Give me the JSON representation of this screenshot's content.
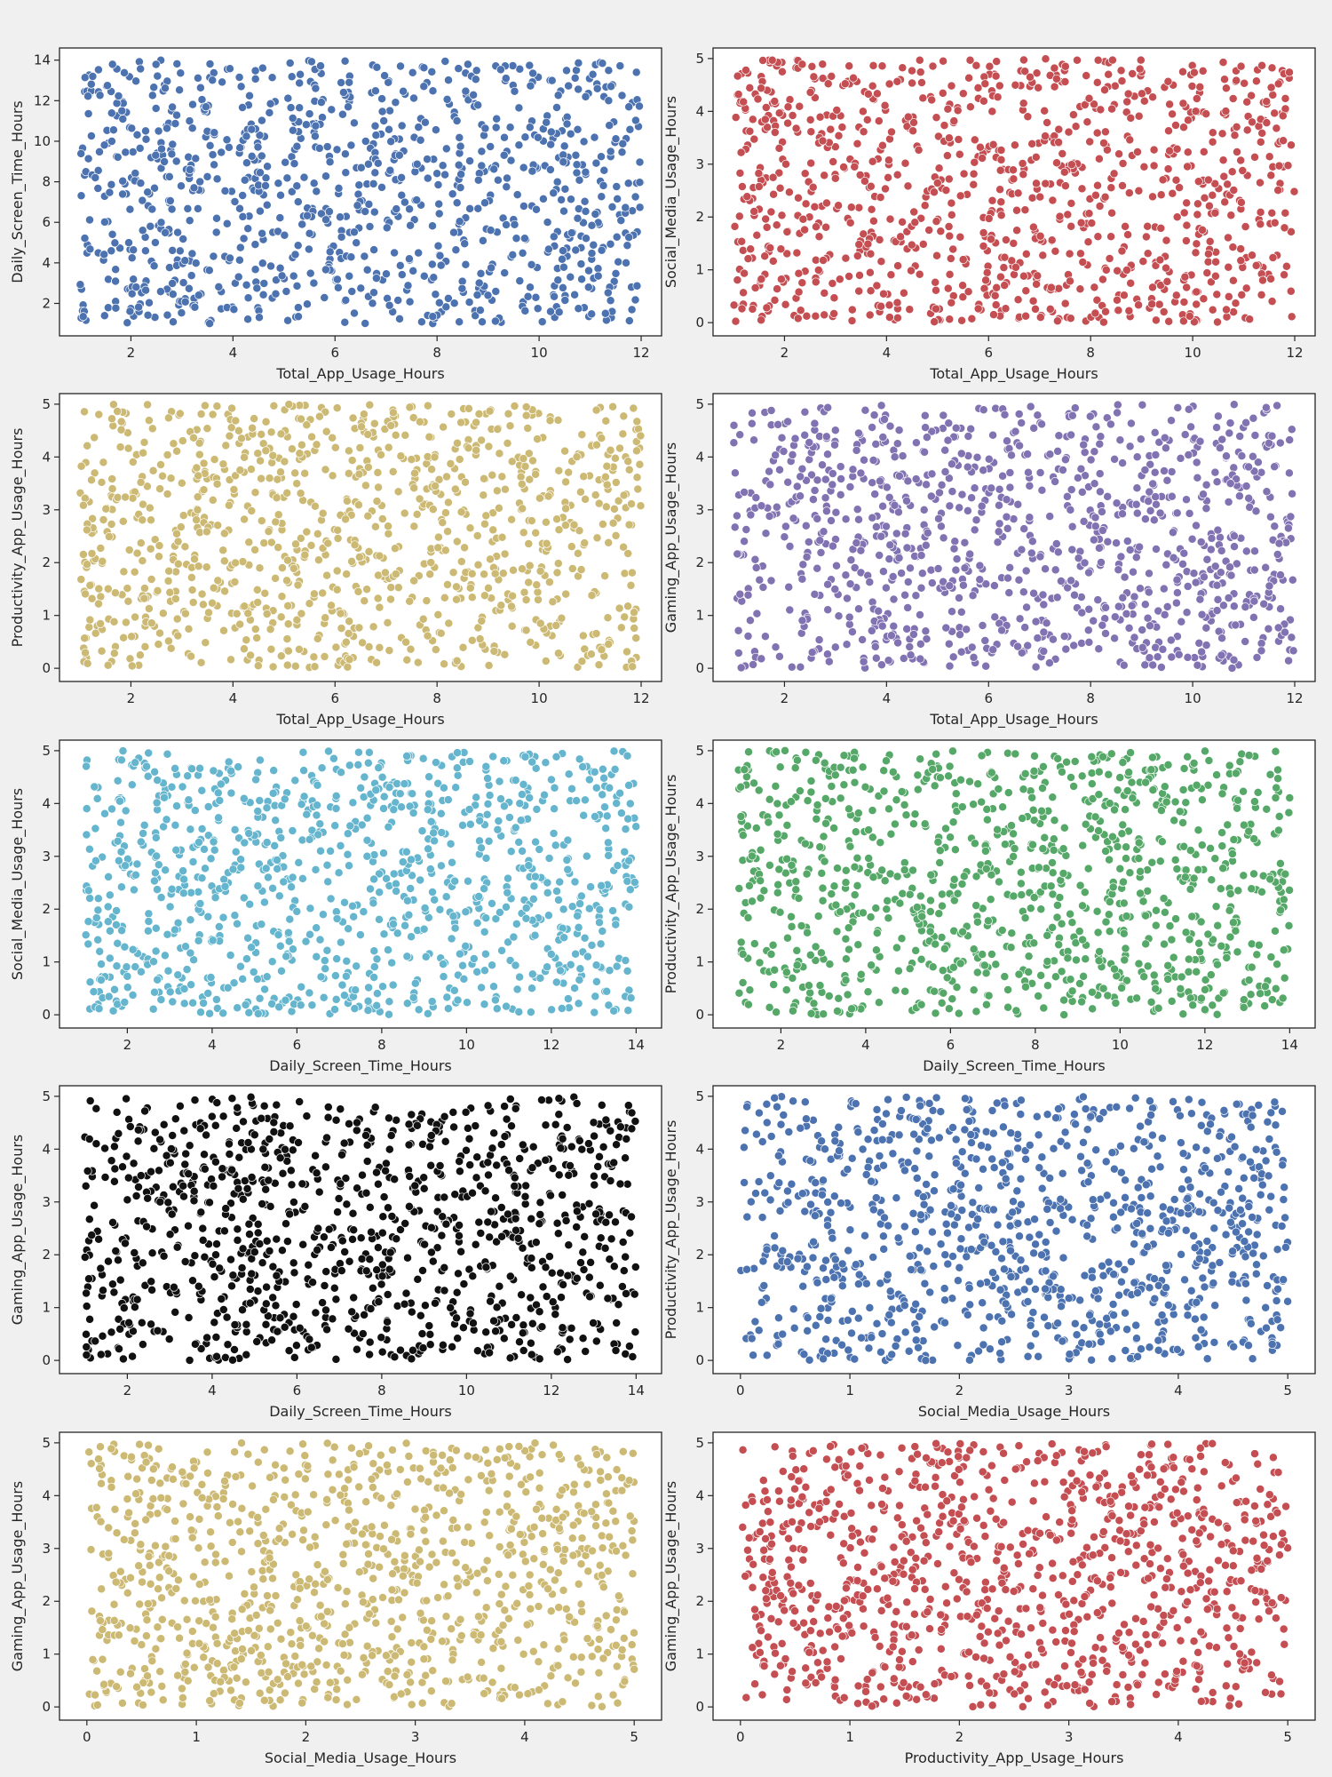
{
  "figure": {
    "background": "#f0f0f0",
    "plot_background": "#ffffff",
    "point_edge": "#ffffff"
  },
  "chart_data": [
    {
      "type": "scatter",
      "xlabel": "Total_App_Usage_Hours",
      "ylabel": "Daily_Screen_Time_Hours",
      "xlim": [
        0.6,
        12.4
      ],
      "ylim": [
        0.4,
        14.6
      ],
      "xticks": [
        2,
        4,
        6,
        8,
        10,
        12
      ],
      "yticks": [
        2,
        4,
        6,
        8,
        10,
        12,
        14
      ],
      "x_range": [
        1,
        12
      ],
      "y_range": [
        1,
        14
      ],
      "color": "#4c72b0",
      "n_points": 1000,
      "seed": 11,
      "grid": false,
      "legend": "none"
    },
    {
      "type": "scatter",
      "xlabel": "Total_App_Usage_Hours",
      "ylabel": "Social_Media_Usage_Hours",
      "xlim": [
        0.6,
        12.4
      ],
      "ylim": [
        -0.25,
        5.2
      ],
      "xticks": [
        2,
        4,
        6,
        8,
        10,
        12
      ],
      "yticks": [
        0,
        1,
        2,
        3,
        4,
        5
      ],
      "x_range": [
        1,
        12
      ],
      "y_range": [
        0,
        5
      ],
      "color": "#c44e52",
      "n_points": 1000,
      "seed": 23,
      "grid": false,
      "legend": "none"
    },
    {
      "type": "scatter",
      "xlabel": "Total_App_Usage_Hours",
      "ylabel": "Productivity_App_Usage_Hours",
      "xlim": [
        0.6,
        12.4
      ],
      "ylim": [
        -0.25,
        5.2
      ],
      "xticks": [
        2,
        4,
        6,
        8,
        10,
        12
      ],
      "yticks": [
        0,
        1,
        2,
        3,
        4,
        5
      ],
      "x_range": [
        1,
        12
      ],
      "y_range": [
        0,
        5
      ],
      "color": "#ccb974",
      "n_points": 1000,
      "seed": 37,
      "grid": false,
      "legend": "none"
    },
    {
      "type": "scatter",
      "xlabel": "Total_App_Usage_Hours",
      "ylabel": "Gaming_App_Usage_Hours",
      "xlim": [
        0.6,
        12.4
      ],
      "ylim": [
        -0.25,
        5.2
      ],
      "xticks": [
        2,
        4,
        6,
        8,
        10,
        12
      ],
      "yticks": [
        0,
        1,
        2,
        3,
        4,
        5
      ],
      "x_range": [
        1,
        12
      ],
      "y_range": [
        0,
        5
      ],
      "color": "#8172b2",
      "n_points": 1000,
      "seed": 41,
      "grid": false,
      "legend": "none"
    },
    {
      "type": "scatter",
      "xlabel": "Daily_Screen_Time_Hours",
      "ylabel": "Social_Media_Usage_Hours",
      "xlim": [
        0.4,
        14.6
      ],
      "ylim": [
        -0.25,
        5.2
      ],
      "xticks": [
        2,
        4,
        6,
        8,
        10,
        12,
        14
      ],
      "yticks": [
        0,
        1,
        2,
        3,
        4,
        5
      ],
      "x_range": [
        1,
        14
      ],
      "y_range": [
        0,
        5
      ],
      "color": "#64b5cd",
      "n_points": 1000,
      "seed": 53,
      "grid": false,
      "legend": "none"
    },
    {
      "type": "scatter",
      "xlabel": "Daily_Screen_Time_Hours",
      "ylabel": "Productivity_App_Usage_Hours",
      "xlim": [
        0.4,
        14.6
      ],
      "ylim": [
        -0.25,
        5.2
      ],
      "xticks": [
        2,
        4,
        6,
        8,
        10,
        12,
        14
      ],
      "yticks": [
        0,
        1,
        2,
        3,
        4,
        5
      ],
      "x_range": [
        1,
        14
      ],
      "y_range": [
        0,
        5
      ],
      "color": "#55a868",
      "n_points": 1000,
      "seed": 67,
      "grid": false,
      "legend": "none"
    },
    {
      "type": "scatter",
      "xlabel": "Daily_Screen_Time_Hours",
      "ylabel": "Gaming_App_Usage_Hours",
      "xlim": [
        0.4,
        14.6
      ],
      "ylim": [
        -0.25,
        5.2
      ],
      "xticks": [
        2,
        4,
        6,
        8,
        10,
        12,
        14
      ],
      "yticks": [
        0,
        1,
        2,
        3,
        4,
        5
      ],
      "x_range": [
        1,
        14
      ],
      "y_range": [
        0,
        5
      ],
      "color": "#111111",
      "n_points": 1000,
      "seed": 71,
      "grid": false,
      "legend": "none"
    },
    {
      "type": "scatter",
      "xlabel": "Social_Media_Usage_Hours",
      "ylabel": "Productivity_App_Usage_Hours",
      "xlim": [
        -0.25,
        5.25
      ],
      "ylim": [
        -0.25,
        5.2
      ],
      "xticks": [
        0,
        1,
        2,
        3,
        4,
        5
      ],
      "yticks": [
        0,
        1,
        2,
        3,
        4,
        5
      ],
      "x_range": [
        0,
        5
      ],
      "y_range": [
        0,
        5
      ],
      "color": "#4c72b0",
      "n_points": 1000,
      "seed": 83,
      "grid": false,
      "legend": "none"
    },
    {
      "type": "scatter",
      "xlabel": "Social_Media_Usage_Hours",
      "ylabel": "Gaming_App_Usage_Hours",
      "xlim": [
        -0.25,
        5.25
      ],
      "ylim": [
        -0.25,
        5.2
      ],
      "xticks": [
        0,
        1,
        2,
        3,
        4,
        5
      ],
      "yticks": [
        0,
        1,
        2,
        3,
        4,
        5
      ],
      "x_range": [
        0,
        5
      ],
      "y_range": [
        0,
        5
      ],
      "color": "#ccb974",
      "n_points": 1000,
      "seed": 97,
      "grid": false,
      "legend": "none"
    },
    {
      "type": "scatter",
      "xlabel": "Productivity_App_Usage_Hours",
      "ylabel": "Gaming_App_Usage_Hours",
      "xlim": [
        -0.25,
        5.25
      ],
      "ylim": [
        -0.25,
        5.2
      ],
      "xticks": [
        0,
        1,
        2,
        3,
        4,
        5
      ],
      "yticks": [
        0,
        1,
        2,
        3,
        4,
        5
      ],
      "x_range": [
        0,
        5
      ],
      "y_range": [
        0,
        5
      ],
      "color": "#c44e52",
      "n_points": 1000,
      "seed": 101,
      "grid": false,
      "legend": "none"
    }
  ]
}
